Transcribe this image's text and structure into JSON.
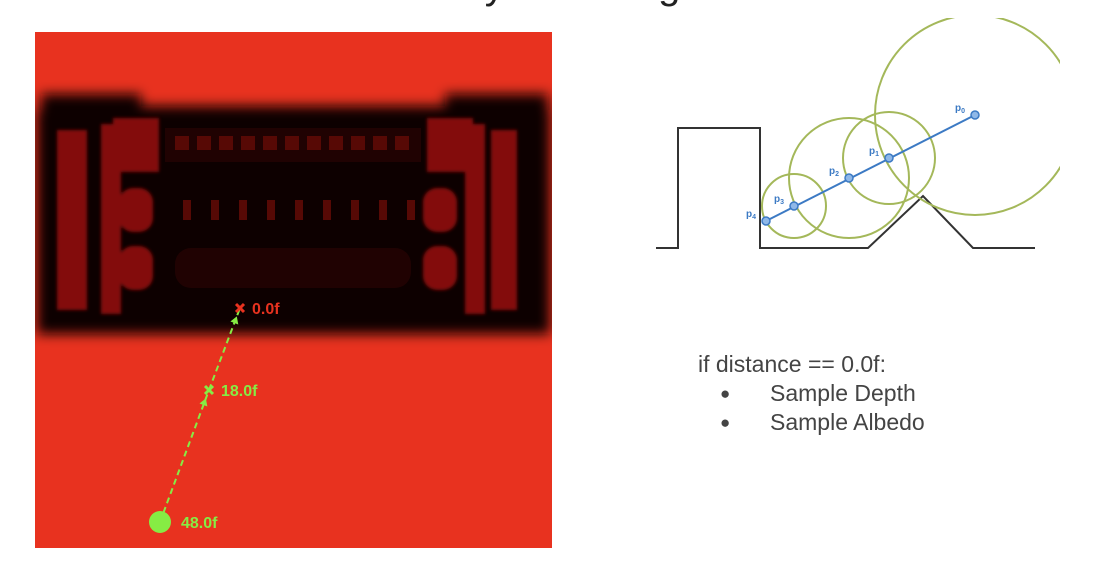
{
  "title": "Ray Marching",
  "sdf_view": {
    "background_color": "#e8321f",
    "shape_color": "#100101",
    "accent_color": "#86ec44",
    "hit_color": "#e8321f",
    "samples": [
      {
        "label": "48.0f",
        "kind": "origin"
      },
      {
        "label": "18.0f",
        "kind": "step"
      },
      {
        "label": "0.0f",
        "kind": "hit"
      }
    ]
  },
  "march_diagram": {
    "ray_color": "#3c7ac4",
    "circle_color": "#a4b85a",
    "terrain_color": "#333333",
    "points": [
      {
        "label": "p",
        "sub": "0"
      },
      {
        "label": "p",
        "sub": "1"
      },
      {
        "label": "p",
        "sub": "2"
      },
      {
        "label": "p",
        "sub": "3"
      },
      {
        "label": "p",
        "sub": "4"
      }
    ]
  },
  "code": {
    "condition": "if distance == 0.0f:",
    "actions": [
      "Sample Depth",
      "Sample Albedo"
    ]
  }
}
